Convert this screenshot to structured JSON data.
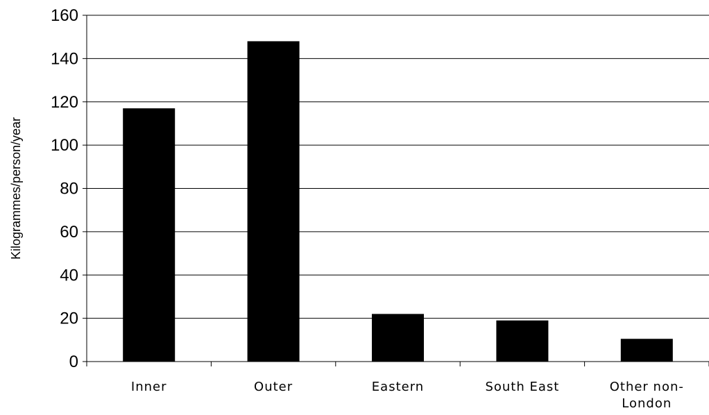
{
  "chart_data": {
    "type": "bar",
    "categories": [
      "Inner",
      "Outer",
      "Eastern",
      "South East",
      "Other non-London"
    ],
    "category_label_lines": [
      [
        "Inner"
      ],
      [
        "Outer"
      ],
      [
        "Eastern"
      ],
      [
        "South East"
      ],
      [
        "Other non-",
        "London"
      ]
    ],
    "values": [
      117,
      148,
      22,
      19,
      10.5
    ],
    "title": "",
    "xlabel": "",
    "ylabel": "Kilogrammes/person/year",
    "ylim": [
      0,
      160
    ],
    "yticks": [
      0,
      20,
      40,
      60,
      80,
      100,
      120,
      140,
      160
    ],
    "grid": true,
    "legend": "none",
    "bar_color": "#000000",
    "grid_color": "#000000"
  }
}
